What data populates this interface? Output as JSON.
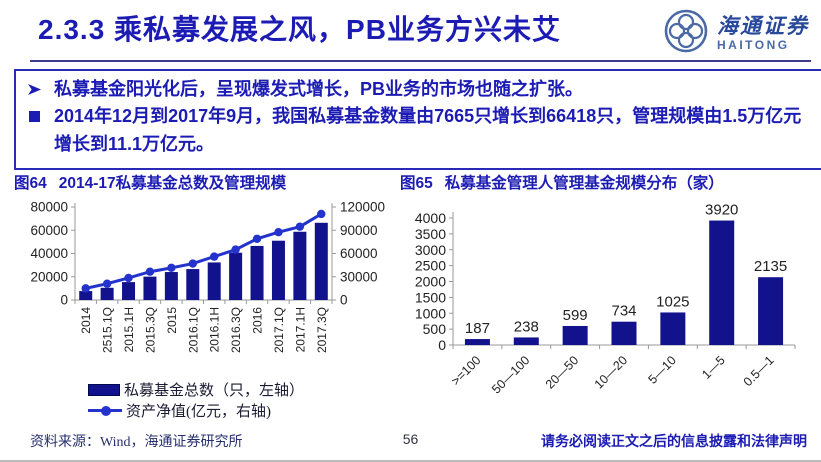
{
  "header": {
    "title": "2.3.3 乘私募发展之风，PB业务方兴未艾",
    "logo": {
      "cn": "海通证券",
      "en": "HAITONG",
      "icon": "haitong-flower-emblem",
      "color": "#4a69a5"
    }
  },
  "callout": {
    "bullets": [
      {
        "icon": "arrow-right-bullet",
        "text": "私募基金阳光化后，呈现爆发式增长，PB业务的市场也随之扩张。"
      },
      {
        "icon": "square-bullet",
        "text": "2014年12月到2017年9月，我国私募基金数量由7665只增长到66418只，管理规模由1.5万亿元增长到11.1万亿元。"
      }
    ]
  },
  "figures": {
    "fig64": {
      "label": "图64",
      "title": "2014-17私募基金总数及管理规模"
    },
    "fig65": {
      "label": "图65",
      "title": "私募基金管理人管理基金规模分布（家）"
    }
  },
  "chart_data": [
    {
      "type": "bar",
      "subtype": "bar+line dual-axis",
      "title": "2014-17私募基金总数及管理规模",
      "categories": [
        "2014",
        "2515.1Q",
        "2015.1H",
        "2015.3Q",
        "2015",
        "2016.1Q",
        "2016.1H",
        "2016.3Q",
        "2016",
        "2017.1Q",
        "2017.1H",
        "2017.3Q"
      ],
      "series": [
        {
          "name": "私募基金总数（只，左轴）",
          "type": "bar",
          "axis": "left",
          "values": [
            7665,
            10500,
            15400,
            20100,
            24054,
            26600,
            32300,
            40650,
            46505,
            51000,
            58700,
            66418
          ]
        },
        {
          "name": "资产净值(亿元，右轴)",
          "type": "line",
          "axis": "right",
          "values": [
            15000,
            21000,
            28500,
            36500,
            41500,
            47000,
            56000,
            65000,
            79000,
            87500,
            94600,
            111000
          ]
        }
      ],
      "left_axis": {
        "min": 0,
        "max": 80000,
        "ticks": [
          0,
          20000,
          40000,
          60000,
          80000
        ]
      },
      "right_axis": {
        "min": 0,
        "max": 120000,
        "ticks": [
          0,
          30000,
          60000,
          90000,
          120000
        ]
      },
      "legend_position": "bottom",
      "grid": false,
      "colors": {
        "bar": "#12128c",
        "line": "#2333cc",
        "axis": "#999999",
        "tick_text": "#222222"
      }
    },
    {
      "type": "bar",
      "title": "私募基金管理人管理基金规模分布（家）",
      "categories": [
        ">=100",
        "50—100",
        "20—50",
        "10—20",
        "5—10",
        "1—5",
        "0.5—1"
      ],
      "values": [
        187,
        238,
        599,
        734,
        1025,
        3920,
        2135
      ],
      "xlabel": "",
      "ylabel": "",
      "ylim": [
        0,
        4000
      ],
      "yticks": [
        0,
        500,
        1000,
        1500,
        2000,
        2500,
        3000,
        3500,
        4000
      ],
      "data_labels": true,
      "grid": false,
      "colors": {
        "bar": "#12128c",
        "axis": "#999999",
        "tick_text": "#222222",
        "label_text": "#222222"
      }
    }
  ],
  "footer": {
    "source": "资料来源：Wind，海通证券研究所",
    "page": "56",
    "disclaimer": "请务必阅读正文之后的信息披露和法律声明"
  }
}
